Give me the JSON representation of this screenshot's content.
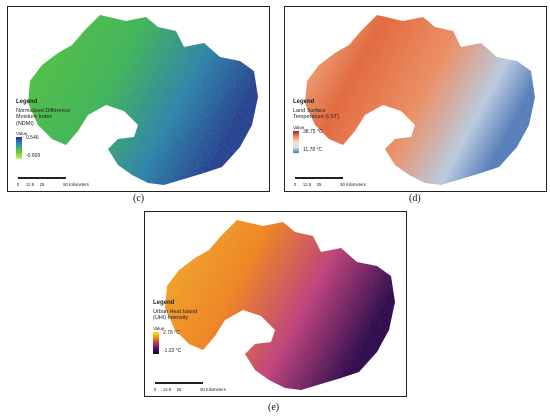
{
  "panels": [
    {
      "id": "c",
      "caption": "(c)",
      "legend_title": "Legend",
      "legend_name_lines": [
        "Normalised Difference",
        "Moisture Index",
        "(NDMI)"
      ],
      "value_label": "Value",
      "high_label": "0.546",
      "low_label": "-0.609",
      "ramp_colors": [
        "#1f2f8f",
        "#2c7fb8",
        "#41ae76",
        "#7fd13b",
        "#c6f06b"
      ],
      "scale_ticks": [
        "0",
        "12.5",
        "25",
        "50 Kilometers"
      ]
    },
    {
      "id": "d",
      "caption": "(d)",
      "legend_title": "Legend",
      "legend_name_lines": [
        "Land Surface",
        "Temperature (LST)"
      ],
      "value_label": "Value",
      "high_label": "38.75 °C",
      "low_label": "11.78 °C",
      "ramp_colors": [
        "#b2182b",
        "#ef8a62",
        "#fddbc7",
        "#d1e5f0",
        "#4575b4"
      ],
      "scale_ticks": [
        "0",
        "12.5",
        "25",
        "50 Kilometers"
      ]
    },
    {
      "id": "e",
      "caption": "(e)",
      "legend_title": "Legend",
      "legend_name_lines": [
        "Urban Heat Island",
        "(UHI) Intensity"
      ],
      "value_label": "Value",
      "high_label": "2.76 °C",
      "low_label": "-1.22 °C",
      "ramp_colors": [
        "#fde725",
        "#f98e09",
        "#bc3754",
        "#57106e",
        "#0d0829"
      ],
      "scale_ticks": [
        "0",
        "12.5",
        "25",
        "50 Kilometers"
      ]
    }
  ]
}
